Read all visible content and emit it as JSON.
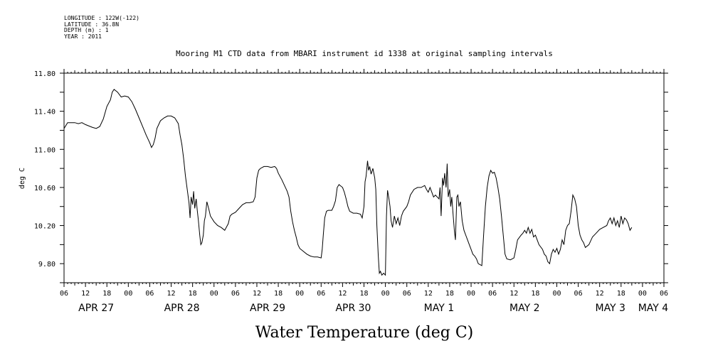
{
  "header": {
    "longitude": "LONGITUDE : 122W(-122)",
    "latitude": "LATITUDE : 36.8N",
    "depth": "DEPTH (m) : 1",
    "year": "YEAR : 2011"
  },
  "chart_data": {
    "type": "line",
    "title": "Mooring M1 CTD data from MBARI instrument id 1338 at original sampling intervals",
    "xlabel": "Water Temperature (deg C)",
    "ylabel": "deg C",
    "ylim": [
      9.6,
      11.8
    ],
    "y_ticks": [
      "11.80",
      "11.40",
      "11.00",
      "10.60",
      "10.20",
      "9.80"
    ],
    "xlim_hours": [
      0,
      168
    ],
    "hour_ticks": [
      "06",
      "12",
      "18",
      "00",
      "06",
      "12",
      "18",
      "00",
      "06",
      "12",
      "18",
      "00",
      "06",
      "12",
      "18",
      "00",
      "06",
      "12",
      "18",
      "00",
      "06",
      "12",
      "18",
      "00",
      "06",
      "12",
      "18",
      "00",
      "06"
    ],
    "day_labels": [
      {
        "label": "APR 27",
        "hour": 9
      },
      {
        "label": "APR 28",
        "hour": 33
      },
      {
        "label": "APR 29",
        "hour": 57
      },
      {
        "label": "APR 30",
        "hour": 81
      },
      {
        "label": "MAY  1",
        "hour": 105
      },
      {
        "label": "MAY  2",
        "hour": 129
      },
      {
        "label": "MAY  3",
        "hour": 153
      },
      {
        "label": "MAY  4",
        "hour": 165
      }
    ],
    "grid": false,
    "series": [
      {
        "points": [
          [
            0,
            11.22
          ],
          [
            1,
            11.28
          ],
          [
            3,
            11.28
          ],
          [
            4,
            11.27
          ],
          [
            5,
            11.28
          ],
          [
            6,
            11.26
          ],
          [
            8,
            11.23
          ],
          [
            9,
            11.22
          ],
          [
            10,
            11.24
          ],
          [
            11,
            11.32
          ],
          [
            12,
            11.45
          ],
          [
            13,
            11.52
          ],
          [
            13.5,
            11.6
          ],
          [
            14,
            11.63
          ],
          [
            15,
            11.6
          ],
          [
            16,
            11.55
          ],
          [
            17,
            11.56
          ],
          [
            18,
            11.55
          ],
          [
            19,
            11.5
          ],
          [
            20,
            11.42
          ],
          [
            21,
            11.33
          ],
          [
            22,
            11.24
          ],
          [
            23,
            11.15
          ],
          [
            24,
            11.07
          ],
          [
            24.5,
            11.02
          ],
          [
            25,
            11.05
          ],
          [
            25.5,
            11.12
          ],
          [
            26,
            11.22
          ],
          [
            27,
            11.3
          ],
          [
            28,
            11.33
          ],
          [
            29,
            11.35
          ],
          [
            30,
            11.35
          ],
          [
            31,
            11.33
          ],
          [
            32,
            11.27
          ],
          [
            32.5,
            11.15
          ],
          [
            33,
            11.05
          ],
          [
            33.5,
            10.9
          ],
          [
            34,
            10.72
          ],
          [
            34.5,
            10.58
          ],
          [
            35,
            10.44
          ],
          [
            35.3,
            10.28
          ],
          [
            35.6,
            10.5
          ],
          [
            36,
            10.42
          ],
          [
            36.3,
            10.56
          ],
          [
            36.6,
            10.38
          ],
          [
            37,
            10.48
          ],
          [
            37.3,
            10.36
          ],
          [
            37.6,
            10.26
          ],
          [
            38,
            10.1
          ],
          [
            38.3,
            10.0
          ],
          [
            38.6,
            10.02
          ],
          [
            39,
            10.1
          ],
          [
            39.3,
            10.25
          ],
          [
            39.6,
            10.3
          ],
          [
            40,
            10.45
          ],
          [
            40.5,
            10.38
          ],
          [
            41,
            10.3
          ],
          [
            42,
            10.24
          ],
          [
            43,
            10.2
          ],
          [
            44,
            10.18
          ],
          [
            45,
            10.15
          ],
          [
            46,
            10.22
          ],
          [
            46.5,
            10.3
          ],
          [
            47,
            10.32
          ],
          [
            48,
            10.34
          ],
          [
            49,
            10.38
          ],
          [
            50,
            10.42
          ],
          [
            51,
            10.44
          ],
          [
            52,
            10.44
          ],
          [
            53,
            10.45
          ],
          [
            53.5,
            10.5
          ],
          [
            54,
            10.7
          ],
          [
            54.5,
            10.78
          ],
          [
            55,
            10.8
          ],
          [
            56,
            10.82
          ],
          [
            57,
            10.82
          ],
          [
            58,
            10.81
          ],
          [
            59,
            10.82
          ],
          [
            59.5,
            10.8
          ],
          [
            60,
            10.75
          ],
          [
            61,
            10.68
          ],
          [
            62,
            10.6
          ],
          [
            62.5,
            10.56
          ],
          [
            63,
            10.5
          ],
          [
            63.5,
            10.35
          ],
          [
            64,
            10.24
          ],
          [
            64.5,
            10.15
          ],
          [
            65,
            10.08
          ],
          [
            65.5,
            10.0
          ],
          [
            66,
            9.96
          ],
          [
            67,
            9.93
          ],
          [
            68,
            9.9
          ],
          [
            69,
            9.88
          ],
          [
            70,
            9.87
          ],
          [
            71,
            9.87
          ],
          [
            72,
            9.86
          ],
          [
            72.3,
            9.95
          ],
          [
            72.6,
            10.1
          ],
          [
            73,
            10.28
          ],
          [
            73.5,
            10.35
          ],
          [
            74,
            10.36
          ],
          [
            75,
            10.36
          ],
          [
            75.5,
            10.4
          ],
          [
            76,
            10.46
          ],
          [
            76.5,
            10.6
          ],
          [
            77,
            10.63
          ],
          [
            78,
            10.6
          ],
          [
            78.5,
            10.55
          ],
          [
            79,
            10.48
          ],
          [
            79.5,
            10.4
          ],
          [
            80,
            10.35
          ],
          [
            81,
            10.33
          ],
          [
            82,
            10.33
          ],
          [
            83,
            10.32
          ],
          [
            83.5,
            10.28
          ],
          [
            84,
            10.4
          ],
          [
            84.3,
            10.66
          ],
          [
            84.6,
            10.72
          ],
          [
            85,
            10.88
          ],
          [
            85.3,
            10.78
          ],
          [
            85.6,
            10.82
          ],
          [
            86,
            10.74
          ],
          [
            86.5,
            10.8
          ],
          [
            87,
            10.7
          ],
          [
            87.3,
            10.58
          ],
          [
            87.6,
            10.2
          ],
          [
            88,
            9.88
          ],
          [
            88.3,
            9.7
          ],
          [
            88.6,
            9.72
          ],
          [
            89,
            9.68
          ],
          [
            89.5,
            9.7
          ],
          [
            90,
            9.68
          ],
          [
            90.3,
            10.3
          ],
          [
            90.6,
            10.57
          ],
          [
            91,
            10.48
          ],
          [
            91.3,
            10.4
          ],
          [
            91.6,
            10.25
          ],
          [
            92,
            10.18
          ],
          [
            92.5,
            10.3
          ],
          [
            93,
            10.22
          ],
          [
            93.5,
            10.28
          ],
          [
            94,
            10.2
          ],
          [
            94.5,
            10.3
          ],
          [
            95,
            10.35
          ],
          [
            96,
            10.4
          ],
          [
            96.5,
            10.45
          ],
          [
            97,
            10.52
          ],
          [
            98,
            10.58
          ],
          [
            99,
            10.6
          ],
          [
            100,
            10.6
          ],
          [
            101,
            10.62
          ],
          [
            101.5,
            10.58
          ],
          [
            102,
            10.55
          ],
          [
            102.5,
            10.6
          ],
          [
            103,
            10.55
          ],
          [
            103.5,
            10.5
          ],
          [
            104,
            10.52
          ],
          [
            104.5,
            10.5
          ],
          [
            105,
            10.48
          ],
          [
            105.3,
            10.6
          ],
          [
            105.6,
            10.3
          ],
          [
            106,
            10.7
          ],
          [
            106.3,
            10.62
          ],
          [
            106.6,
            10.75
          ],
          [
            107,
            10.6
          ],
          [
            107.3,
            10.85
          ],
          [
            107.6,
            10.5
          ],
          [
            108,
            10.58
          ],
          [
            108.3,
            10.4
          ],
          [
            108.6,
            10.5
          ],
          [
            109,
            10.3
          ],
          [
            109.3,
            10.15
          ],
          [
            109.6,
            10.05
          ],
          [
            110,
            10.5
          ],
          [
            110.3,
            10.52
          ],
          [
            110.6,
            10.4
          ],
          [
            111,
            10.45
          ],
          [
            111.5,
            10.25
          ],
          [
            112,
            10.15
          ],
          [
            112.5,
            10.1
          ],
          [
            113,
            10.05
          ],
          [
            113.5,
            10.0
          ],
          [
            114,
            9.95
          ],
          [
            114.5,
            9.9
          ],
          [
            115,
            9.88
          ],
          [
            115.5,
            9.85
          ],
          [
            116,
            9.8
          ],
          [
            117,
            9.78
          ],
          [
            117.5,
            10.1
          ],
          [
            118,
            10.4
          ],
          [
            118.5,
            10.6
          ],
          [
            119,
            10.72
          ],
          [
            119.5,
            10.78
          ],
          [
            120,
            10.75
          ],
          [
            120.5,
            10.76
          ],
          [
            121,
            10.7
          ],
          [
            121.5,
            10.6
          ],
          [
            122,
            10.48
          ],
          [
            122.5,
            10.3
          ],
          [
            123,
            10.1
          ],
          [
            123.5,
            9.9
          ],
          [
            124,
            9.85
          ],
          [
            125,
            9.84
          ],
          [
            126,
            9.86
          ],
          [
            126.5,
            9.95
          ],
          [
            127,
            10.05
          ],
          [
            128,
            10.1
          ],
          [
            128.5,
            10.12
          ],
          [
            129,
            10.15
          ],
          [
            129.5,
            10.12
          ],
          [
            130,
            10.18
          ],
          [
            130.5,
            10.12
          ],
          [
            131,
            10.16
          ],
          [
            131.5,
            10.08
          ],
          [
            132,
            10.1
          ],
          [
            132.5,
            10.05
          ],
          [
            133,
            10.0
          ],
          [
            134,
            9.95
          ],
          [
            134.5,
            9.9
          ],
          [
            135,
            9.88
          ],
          [
            135.5,
            9.82
          ],
          [
            136,
            9.8
          ],
          [
            136.5,
            9.9
          ],
          [
            137,
            9.95
          ],
          [
            137.5,
            9.92
          ],
          [
            138,
            9.96
          ],
          [
            138.5,
            9.9
          ],
          [
            139,
            9.95
          ],
          [
            139.5,
            10.05
          ],
          [
            140,
            10.0
          ],
          [
            140.5,
            10.15
          ],
          [
            141,
            10.2
          ],
          [
            141.5,
            10.22
          ],
          [
            142,
            10.35
          ],
          [
            142.5,
            10.52
          ],
          [
            143,
            10.48
          ],
          [
            143.5,
            10.4
          ],
          [
            144,
            10.2
          ],
          [
            144.5,
            10.1
          ],
          [
            145,
            10.05
          ],
          [
            145.5,
            10.02
          ],
          [
            146,
            9.97
          ],
          [
            147,
            10.0
          ],
          [
            148,
            10.08
          ],
          [
            149,
            10.12
          ],
          [
            150,
            10.16
          ],
          [
            151,
            10.18
          ],
          [
            152,
            10.2
          ],
          [
            152.5,
            10.25
          ],
          [
            153,
            10.28
          ],
          [
            153.5,
            10.22
          ],
          [
            154,
            10.28
          ],
          [
            154.5,
            10.2
          ],
          [
            155,
            10.25
          ],
          [
            155.5,
            10.18
          ],
          [
            156,
            10.3
          ],
          [
            156.5,
            10.22
          ],
          [
            157,
            10.28
          ],
          [
            157.5,
            10.26
          ],
          [
            158,
            10.22
          ],
          [
            158.5,
            10.15
          ],
          [
            159,
            10.18
          ]
        ]
      }
    ]
  }
}
